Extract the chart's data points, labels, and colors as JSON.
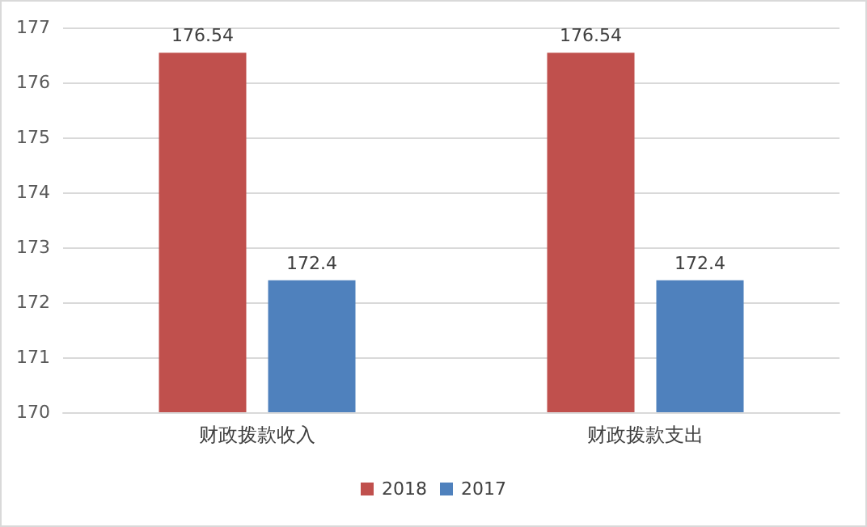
{
  "chart_data": {
    "type": "bar",
    "categories": [
      "财政拨款收入",
      "财政拨款支出"
    ],
    "series": [
      {
        "name": "2018",
        "color": "#c0504d",
        "values": [
          176.54,
          176.54
        ]
      },
      {
        "name": "2017",
        "color": "#4f81bd",
        "values": [
          172.4,
          172.4
        ]
      }
    ],
    "ylim": [
      170,
      177
    ],
    "yticks": [
      170,
      171,
      172,
      173,
      174,
      175,
      176,
      177
    ],
    "grid": "y",
    "legend": "bottom",
    "data_labels": true
  }
}
